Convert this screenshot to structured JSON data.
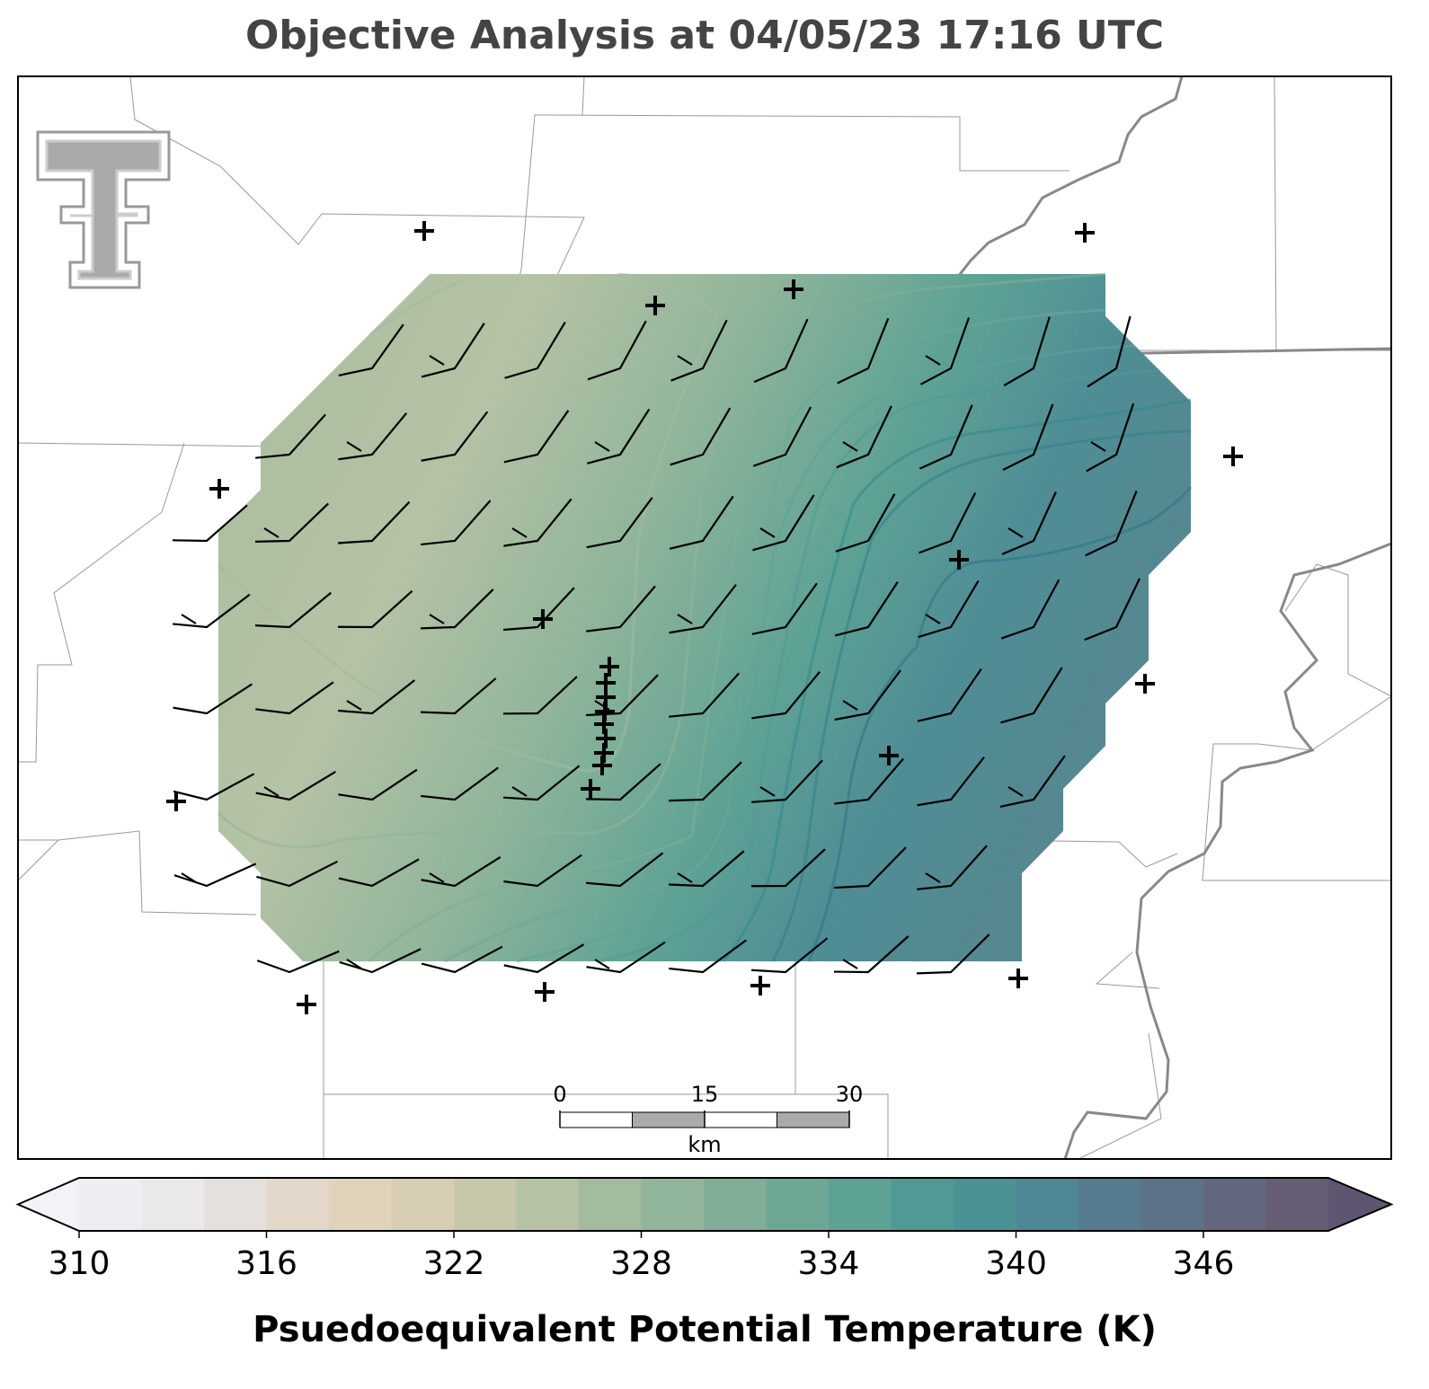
{
  "title": "Objective Analysis at 04/05/23 17:16 UTC",
  "colorbar": {
    "label": "Psuedoequivalent Potential Temperature (K)",
    "range": [
      310,
      350
    ],
    "step": 2,
    "ticks": [
      310,
      316,
      322,
      328,
      334,
      340,
      346
    ],
    "under_color": "#f3f3f7",
    "over_color": "#5e5670",
    "colors": [
      "#eeedf2",
      "#ebe8ea",
      "#e6e0dd",
      "#e3d7ca",
      "#e0d2bb",
      "#d6cdb2",
      "#c7c8aa",
      "#b5c2a5",
      "#a3bb9e",
      "#91b59a",
      "#80ae97",
      "#6ea796",
      "#5ea295",
      "#4f9a95",
      "#4a9294",
      "#4f8794",
      "#567c90",
      "#5d7187",
      "#63677d",
      "#665d74"
    ]
  },
  "scale_bar": {
    "ticks": [
      0,
      15,
      30
    ],
    "unit": "km"
  }
}
